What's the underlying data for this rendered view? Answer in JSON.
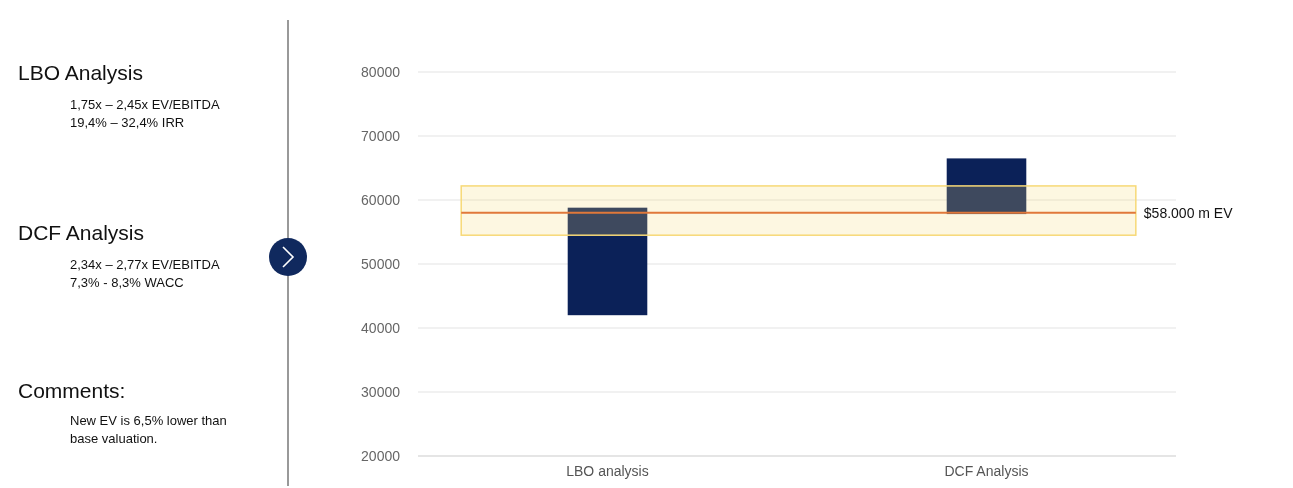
{
  "chart_data": {
    "type": "bar",
    "categories": [
      "LBO analysis",
      "DCF Analysis"
    ],
    "values": [
      16800,
      8700
    ],
    "base": [
      42000,
      57800
    ],
    "color": "#0b2158",
    "ylim": [
      20000,
      80000
    ],
    "yticks": [
      20000,
      30000,
      40000,
      50000,
      60000,
      70000,
      80000
    ],
    "grid": "y",
    "ref_lines": [
      {
        "axis": "y",
        "value": 58000,
        "label": "$58.000 m EV",
        "color": "#e0783a"
      }
    ],
    "bands": [
      {
        "axis": "y",
        "from": 54500,
        "to": 62200,
        "color": "#f7d977"
      }
    ],
    "annotations": [
      "LBO Analysis",
      "1,75x – 2,45x EV/EBITDA",
      "19,4% – 32,4% IRR",
      "DCF Analysis",
      "2,34x – 2,77x EV/EBITDA",
      "7,3% - 8,3% WACC",
      "Comments:",
      "New EV is 6,5% lower than base valuation."
    ]
  }
}
